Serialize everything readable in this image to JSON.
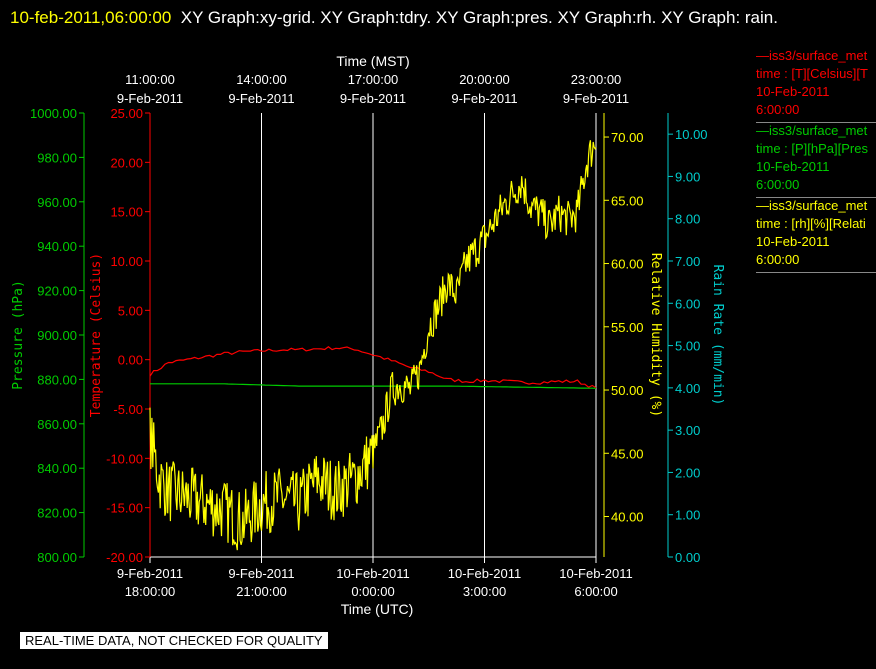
{
  "title": {
    "timestamp": "10-feb-2011,06:00:00",
    "graphs": "XY Graph:xy-grid.  XY Graph:tdry.  XY Graph:pres.  XY Graph:rh.  XY Graph: rain."
  },
  "notice": "REAL-TIME DATA, NOT CHECKED FOR QUALITY",
  "legend": [
    {
      "line1": "iss3/surface_met",
      "line2": "time : [T][Celsius][T",
      "line3": "10-Feb-2011",
      "line4": "6:00:00",
      "color": "#ff0000"
    },
    {
      "line1": "iss3/surface_met",
      "line2": "time : [P][hPa][Pres",
      "line3": "10-Feb-2011",
      "line4": "6:00:00",
      "color": "#00cc00"
    },
    {
      "line1": "iss3/surface_met",
      "line2": "time : [rh][%][Relati",
      "line3": "10-Feb-2011",
      "line4": "6:00:00",
      "color": "#ffff00"
    }
  ],
  "chart_data": {
    "type": "line",
    "x_top_label": "Time (MST)",
    "x_bottom_label": "Time (UTC)",
    "x_range_utc": [
      "9-Feb-2011 18:00:00",
      "10-Feb-2011 06:00:00"
    ],
    "x_top_ticks": [
      {
        "t1": "11:00:00",
        "t2": "9-Feb-2011"
      },
      {
        "t1": "14:00:00",
        "t2": "9-Feb-2011"
      },
      {
        "t1": "17:00:00",
        "t2": "9-Feb-2011"
      },
      {
        "t1": "20:00:00",
        "t2": "9-Feb-2011"
      },
      {
        "t1": "23:00:00",
        "t2": "9-Feb-2011"
      }
    ],
    "x_bottom_ticks": [
      {
        "t1": "9-Feb-2011",
        "t2": "18:00:00"
      },
      {
        "t1": "9-Feb-2011",
        "t2": "21:00:00"
      },
      {
        "t1": "10-Feb-2011",
        "t2": "0:00:00"
      },
      {
        "t1": "10-Feb-2011",
        "t2": "3:00:00"
      },
      {
        "t1": "10-Feb-2011",
        "t2": "6:00:00"
      }
    ],
    "grid_vertical": true,
    "axes": {
      "pressure": {
        "label": "Pressure (hPa)",
        "range": [
          800,
          1000
        ],
        "ticks": [
          "800.00",
          "820.00",
          "840.00",
          "860.00",
          "880.00",
          "900.00",
          "920.00",
          "940.00",
          "960.00",
          "980.00",
          "1000.00"
        ],
        "color": "#00cc00"
      },
      "temperature": {
        "label": "Temperature (Celsius)",
        "range": [
          -20,
          25
        ],
        "ticks": [
          "-20.00",
          "-15.00",
          "-10.00",
          "-5.00",
          "0.00",
          "5.00",
          "10.00",
          "15.00",
          "20.00",
          "25.00"
        ],
        "color": "#ff0000"
      },
      "humidity": {
        "label": "Relative Humidity (%)",
        "range": [
          36.8,
          71.9
        ],
        "ticks": [
          "40.00",
          "45.00",
          "50.00",
          "55.00",
          "60.00",
          "65.00",
          "70.00"
        ],
        "color": "#ffff00"
      },
      "rain": {
        "label": "Rain Rate (mm/min)",
        "range": [
          0,
          10.5
        ],
        "ticks": [
          "0.00",
          "1.00",
          "2.00",
          "3.00",
          "4.00",
          "5.00",
          "6.00",
          "7.00",
          "8.00",
          "9.00",
          "10.00"
        ],
        "color": "#00cccc"
      }
    },
    "series": [
      {
        "name": "T",
        "axis": "temperature",
        "color": "#ff0000",
        "x_hours": [
          0,
          0.5,
          1,
          1.5,
          2,
          2.5,
          3,
          3.5,
          4,
          4.5,
          5,
          5.5,
          6,
          6.5,
          7,
          7.5,
          8,
          8.5,
          9,
          9.5,
          10,
          10.5,
          11,
          11.5,
          12
        ],
        "values": [
          -1.5,
          -0.3,
          0.0,
          0.3,
          0.6,
          0.8,
          0.9,
          1.0,
          1.0,
          1.1,
          1.2,
          1.1,
          0.5,
          -0.1,
          -0.8,
          -1.2,
          -2.0,
          -2.2,
          -2.1,
          -2.2,
          -2.3,
          -2.3,
          -2.2,
          -2.2,
          -2.9
        ]
      },
      {
        "name": "P",
        "axis": "pressure",
        "color": "#00cc00",
        "x_hours": [
          0,
          2,
          4,
          6,
          8,
          10,
          12
        ],
        "values": [
          878.0,
          878.0,
          877.0,
          877.0,
          877.0,
          876.5,
          876.0
        ]
      },
      {
        "name": "RH",
        "axis": "humidity",
        "color": "#ffff00",
        "x_hours": [
          0,
          0.25,
          0.5,
          1,
          1.5,
          2,
          2.5,
          3,
          3.5,
          4,
          4.5,
          5,
          5.5,
          6,
          6.25,
          6.5,
          6.75,
          7,
          7.25,
          7.5,
          7.75,
          8,
          8.25,
          8.5,
          8.75,
          9,
          9.5,
          10,
          10.25,
          10.5,
          10.75,
          11,
          11.25,
          11.5,
          11.75,
          12
        ],
        "values": [
          46.5,
          43.0,
          42.0,
          41.5,
          41.0,
          40.5,
          39.5,
          41.0,
          41.5,
          41.0,
          43.0,
          42.0,
          43.0,
          45.0,
          47.0,
          50.0,
          50.5,
          50.0,
          51.5,
          55.0,
          56.5,
          58.5,
          57.5,
          60.0,
          61.0,
          62.0,
          64.5,
          66.5,
          64.5,
          64.0,
          63.0,
          64.0,
          63.5,
          64.0,
          68.0,
          69.8
        ]
      }
    ]
  }
}
